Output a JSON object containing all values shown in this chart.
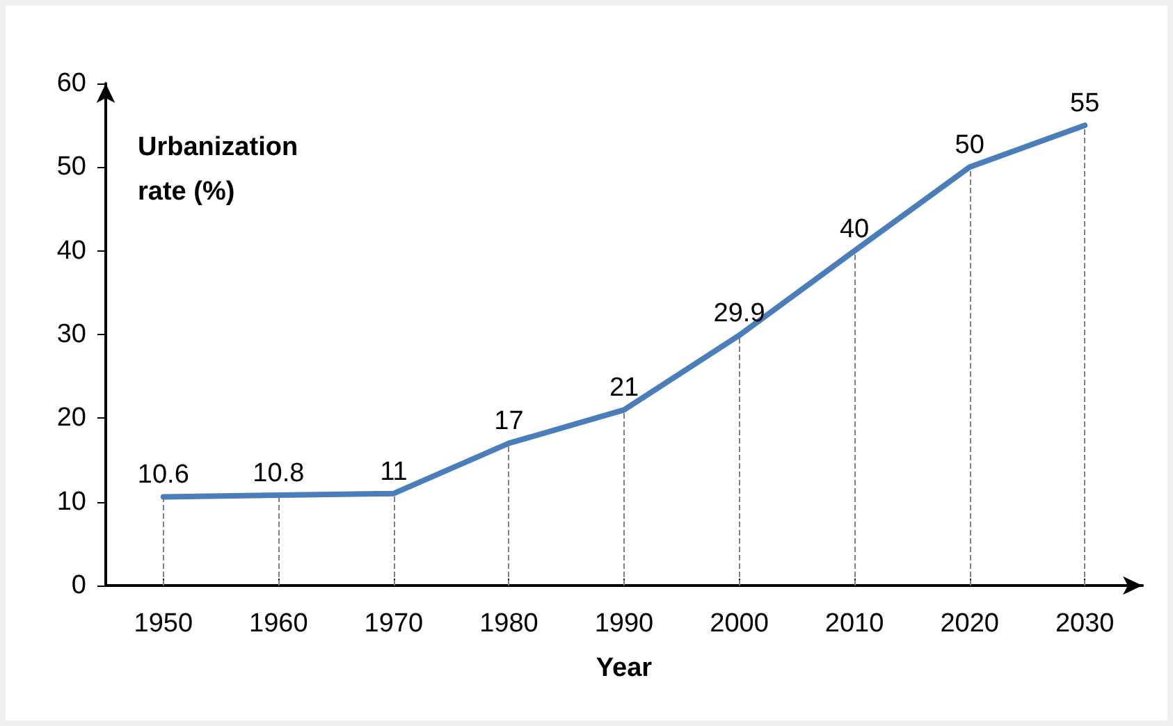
{
  "chart_data": {
    "type": "line",
    "xlabel": "Year",
    "ylabel": "Urbanization rate (%)",
    "x": [
      1950,
      1960,
      1970,
      1980,
      1990,
      2000,
      2010,
      2020,
      2030
    ],
    "series": [
      {
        "color": "#4a7ebb",
        "values": [
          10.6,
          10.8,
          11,
          17,
          21,
          29.9,
          40,
          50,
          55
        ]
      }
    ],
    "xlim": [
      1945,
      2035
    ],
    "xticks": [
      1950,
      1960,
      1970,
      1980,
      1990,
      2000,
      2010,
      2020,
      2030
    ],
    "ylim": [
      0,
      60
    ],
    "yticks": [
      0,
      10,
      20,
      30,
      40,
      50,
      60
    ],
    "grid": false,
    "marker": "none",
    "line_style": "solid",
    "data_labels": true,
    "ref_lines": [
      {
        "axis": "x",
        "value": 1950,
        "color": "#808080",
        "line_style": "dashed"
      },
      {
        "axis": "x",
        "value": 1960,
        "color": "#808080",
        "line_style": "dashed"
      },
      {
        "axis": "x",
        "value": 1970,
        "color": "#808080",
        "line_style": "dashed"
      },
      {
        "axis": "x",
        "value": 1980,
        "color": "#808080",
        "line_style": "dashed"
      },
      {
        "axis": "x",
        "value": 1990,
        "color": "#808080",
        "line_style": "dashed"
      },
      {
        "axis": "x",
        "value": 2000,
        "color": "#808080",
        "line_style": "dashed"
      },
      {
        "axis": "x",
        "value": 2010,
        "color": "#808080",
        "line_style": "dashed"
      },
      {
        "axis": "x",
        "value": 2020,
        "color": "#808080",
        "line_style": "dashed"
      },
      {
        "axis": "x",
        "value": 2030,
        "color": "#808080",
        "line_style": "dashed"
      }
    ]
  }
}
